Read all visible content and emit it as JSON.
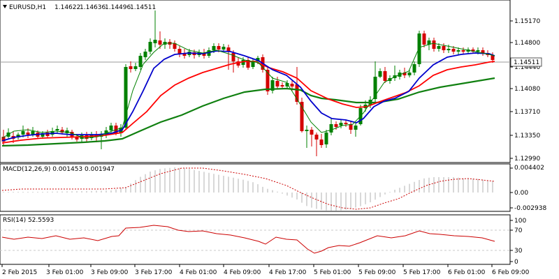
{
  "main_panel": {
    "header": {
      "symbol_timeframe": "EURUSD,H1",
      "open": "1.14622",
      "high": "1.14636",
      "low": "1.14496",
      "close": "1.14511"
    },
    "price_scale": [
      "1.15170",
      "1.14800",
      "1.14440",
      "1.14080",
      "1.13710",
      "1.13350",
      "1.12990"
    ],
    "current_price_label": "1.14511",
    "colors": {
      "up_candle": "#008000",
      "down_candle": "#d40000",
      "ma_fast": "#008000",
      "ma_blue": "#0000cc",
      "ma_red": "#ff0000",
      "ma_slow": "#107010"
    }
  },
  "macd_panel": {
    "title": "MACD(12,26,9) 0.001453 0.001947",
    "scale": [
      "0.004402",
      "0.00",
      "-0.002938"
    ]
  },
  "rsi_panel": {
    "title": "RSI(14) 52.5593",
    "scale": [
      "100",
      "70",
      "30",
      "0"
    ]
  },
  "time_axis": [
    "2 Feb 2015",
    "2 Feb 17:00",
    "3 Feb 01:00",
    "3 Feb 09:00",
    "3 Feb 17:00",
    "4 Feb 01:00",
    "4 Feb 09:00",
    "4 Feb 17:00",
    "5 Feb 01:00",
    "5 Feb 09:00",
    "5 Feb 17:00",
    "6 Feb 01:00",
    "6 Feb 09:00"
  ]
}
